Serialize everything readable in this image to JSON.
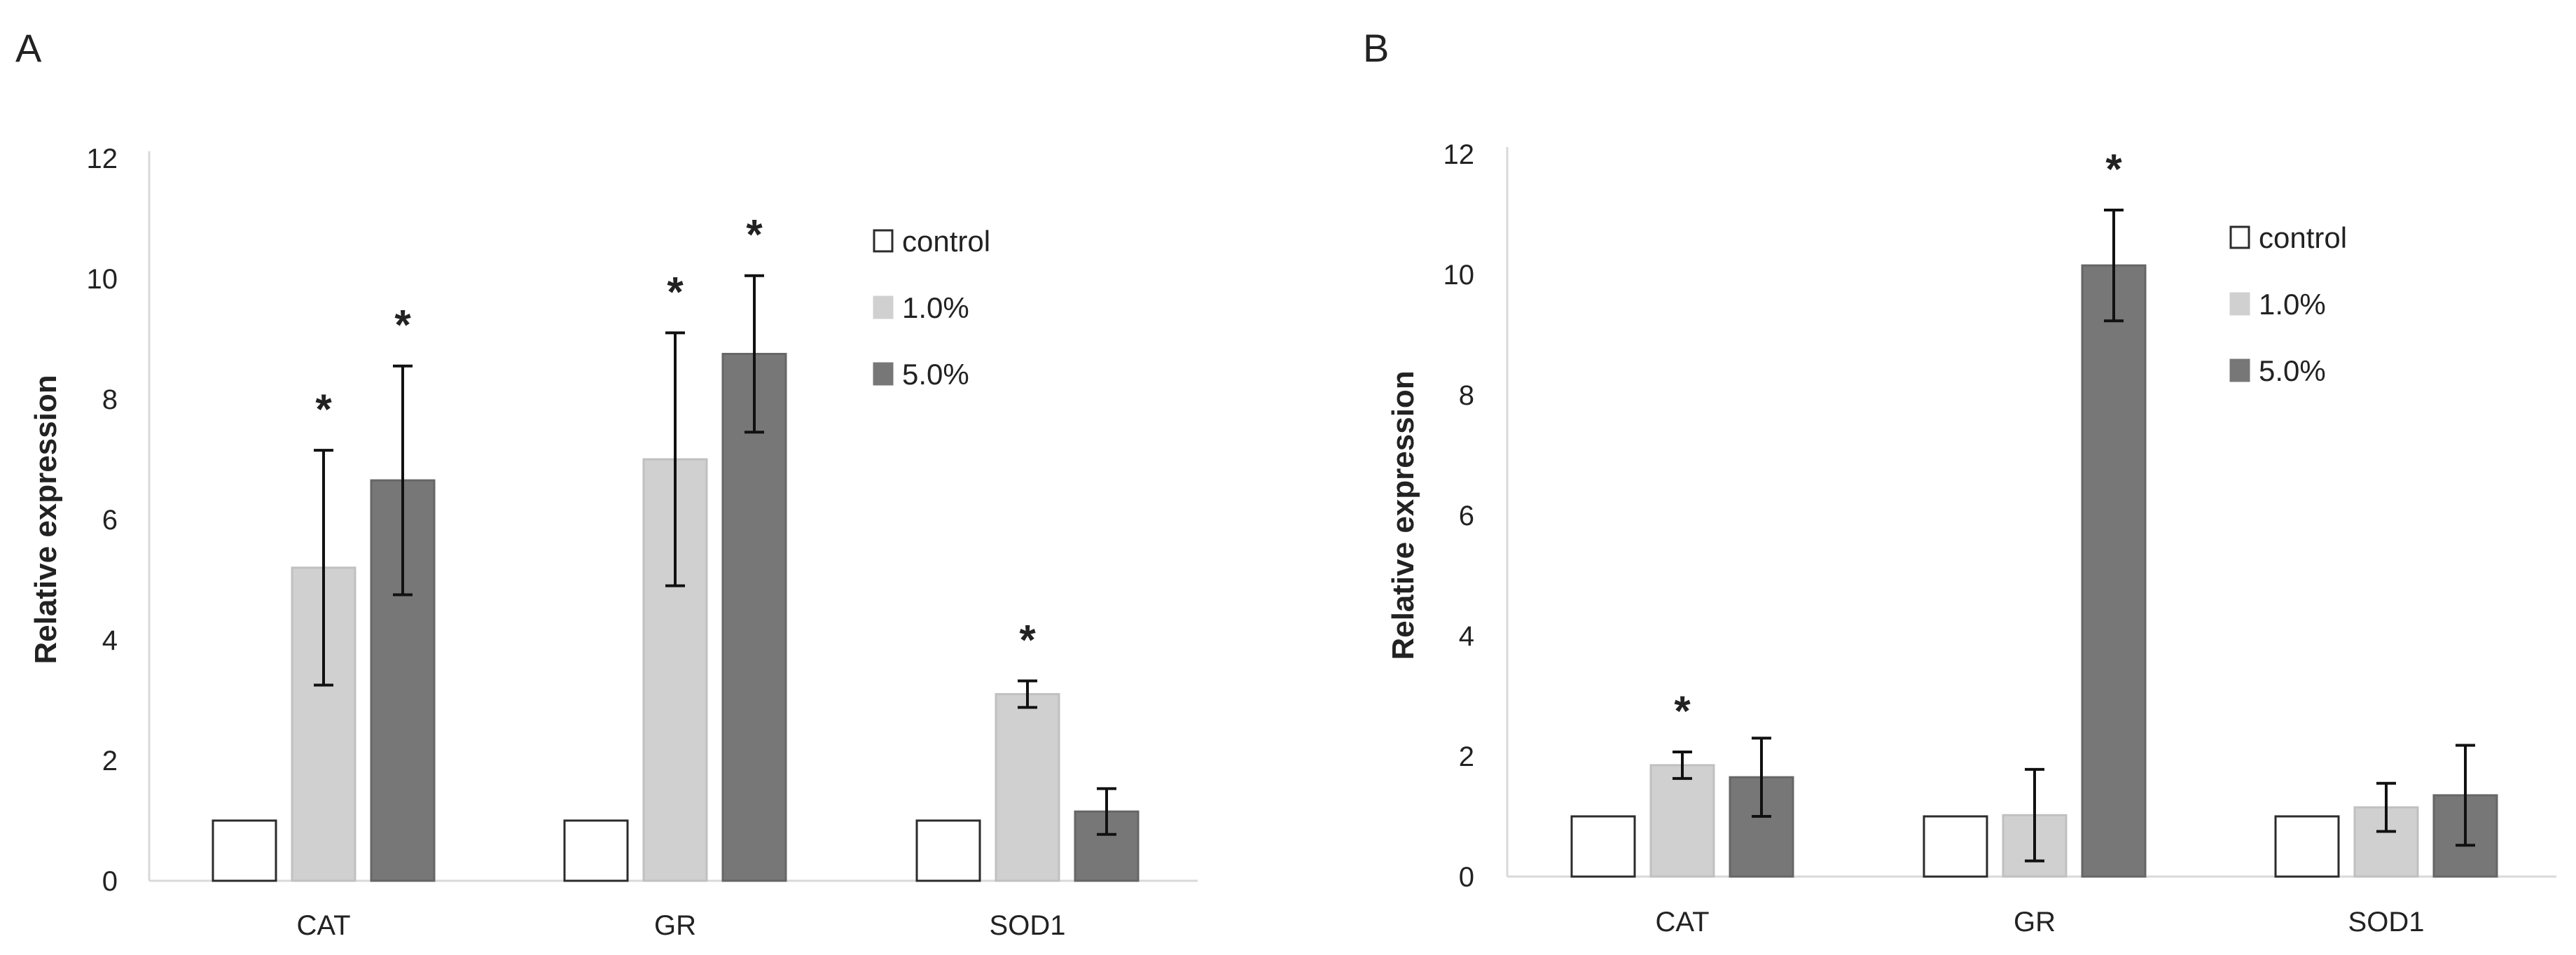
{
  "figure": {
    "panels": [
      {
        "label": "A"
      },
      {
        "label": "B"
      }
    ]
  },
  "chart_data": [
    {
      "panel": "A",
      "type": "bar",
      "title": "",
      "xlabel": "",
      "ylabel": "Relative expression",
      "ylim": [
        0,
        12
      ],
      "yticks": [
        "0",
        "2",
        "4",
        "6",
        "8",
        "10",
        "12"
      ],
      "grid": false,
      "legend_position": "top-right",
      "categories": [
        "CAT",
        "GR",
        "SOD1"
      ],
      "series": [
        {
          "name": "control",
          "color": "#ffffff",
          "edge": "#2b2b2b",
          "values": [
            1.0,
            1.0,
            1.0
          ],
          "errors": [
            0.0,
            0.0,
            0.0
          ],
          "significant": [
            false,
            false,
            false
          ]
        },
        {
          "name": "1.0%",
          "color": "#d0d0d0",
          "edge": "#c0c0c0",
          "values": [
            5.2,
            7.0,
            3.1
          ],
          "errors": [
            1.95,
            2.1,
            0.22
          ],
          "significant": [
            true,
            true,
            true
          ]
        },
        {
          "name": "5.0%",
          "color": "#777777",
          "edge": "#666666",
          "values": [
            6.65,
            8.75,
            1.15
          ],
          "errors": [
            1.9,
            1.3,
            0.38
          ],
          "significant": [
            true,
            true,
            false
          ]
        }
      ],
      "annotation_mark": "*"
    },
    {
      "panel": "B",
      "type": "bar",
      "title": "",
      "xlabel": "",
      "ylabel": "Relative expression",
      "ylim": [
        0,
        12
      ],
      "yticks": [
        "0",
        "2",
        "4",
        "6",
        "8",
        "10",
        "12"
      ],
      "grid": false,
      "legend_position": "top-right",
      "categories": [
        "CAT",
        "GR",
        "SOD1"
      ],
      "series": [
        {
          "name": "control",
          "color": "#ffffff",
          "edge": "#2b2b2b",
          "values": [
            1.0,
            1.0,
            1.0
          ],
          "errors": [
            0.0,
            0.0,
            0.0
          ],
          "significant": [
            false,
            false,
            false
          ]
        },
        {
          "name": "1.0%",
          "color": "#d0d0d0",
          "edge": "#c0c0c0",
          "values": [
            1.85,
            1.02,
            1.15
          ],
          "errors": [
            0.22,
            0.76,
            0.4
          ],
          "significant": [
            true,
            false,
            false
          ]
        },
        {
          "name": "5.0%",
          "color": "#777777",
          "edge": "#666666",
          "values": [
            1.65,
            10.15,
            1.35
          ],
          "errors": [
            0.65,
            0.92,
            0.83
          ],
          "significant": [
            false,
            true,
            false
          ]
        }
      ],
      "annotation_mark": "*"
    }
  ]
}
